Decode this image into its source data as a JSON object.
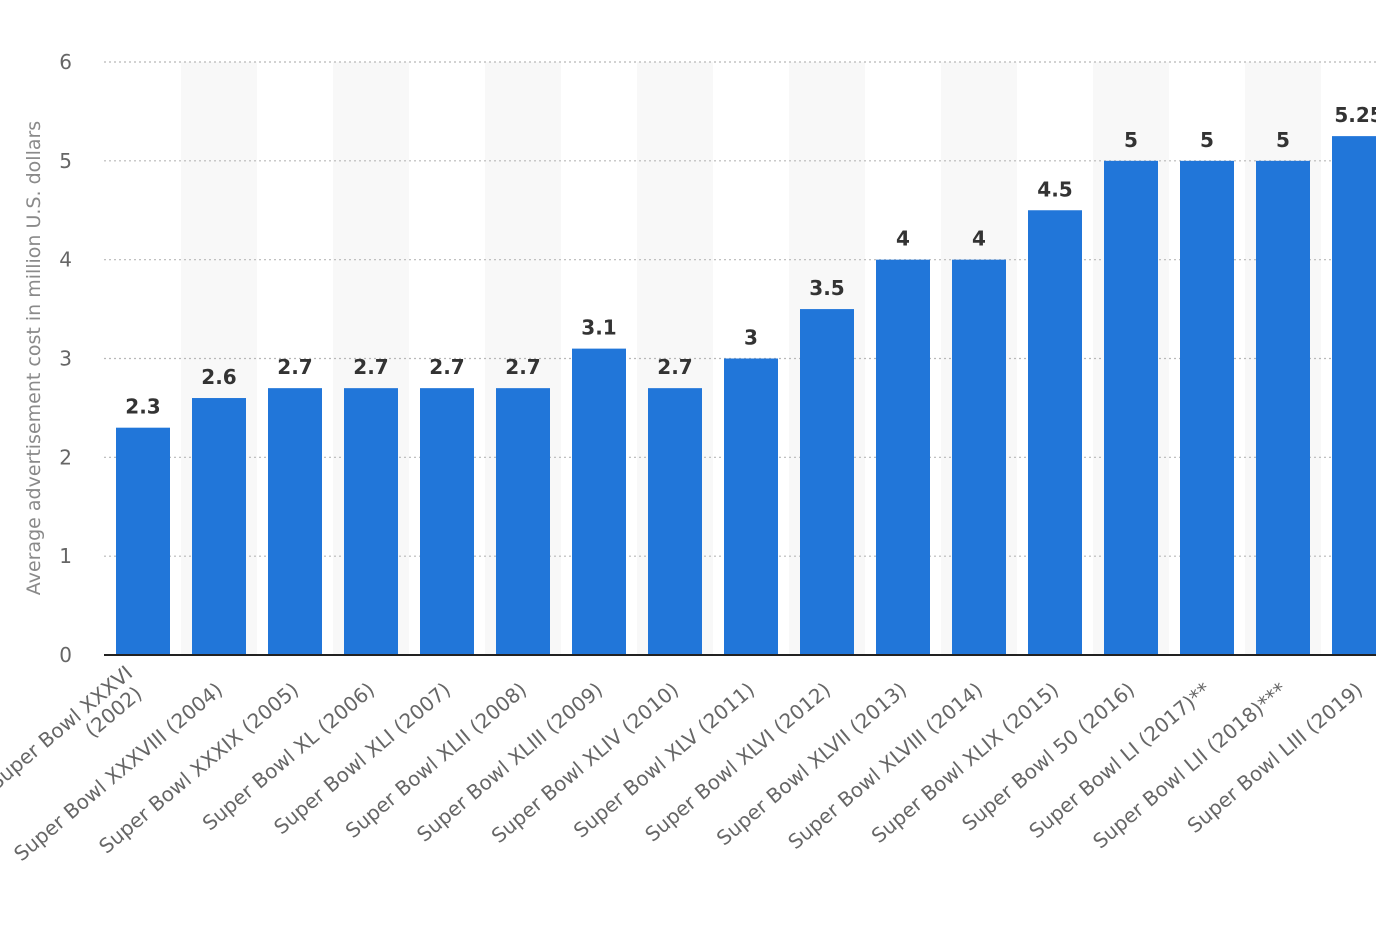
{
  "chart_data": {
    "type": "bar",
    "ylabel": "Average advertisement cost in million U.S. dollars",
    "ylim": [
      0,
      6
    ],
    "yticks": [
      "0",
      "1",
      "2",
      "3",
      "4",
      "5",
      "6"
    ],
    "grid": true,
    "legend": "none",
    "bar_color": "#2176d9",
    "categories": [
      [
        "Super Bowl XXXVI",
        "(2002)"
      ],
      [
        "Super Bowl XXXVIII (2004)"
      ],
      [
        "Super Bowl XXXIX (2005)"
      ],
      [
        "Super Bowl XL (2006)"
      ],
      [
        "Super Bowl XLI (2007)"
      ],
      [
        "Super Bowl XLII (2008)"
      ],
      [
        "Super Bowl XLIII (2009)"
      ],
      [
        "Super Bowl XLIV (2010)"
      ],
      [
        "Super Bowl XLV (2011)"
      ],
      [
        "Super Bowl XLVI (2012)"
      ],
      [
        "Super Bowl XLVII (2013)"
      ],
      [
        "Super Bowl XLVIII (2014)"
      ],
      [
        "Super Bowl XLIX (2015)"
      ],
      [
        "Super Bowl 50 (2016)"
      ],
      [
        "Super Bowl LI (2017)**"
      ],
      [
        "Super Bowl LII (2018)***"
      ],
      [
        "Super Bowl LIII (2019)"
      ]
    ],
    "values": [
      2.3,
      2.6,
      2.7,
      2.7,
      2.7,
      2.7,
      3.1,
      2.7,
      3,
      3.5,
      4,
      4,
      4.5,
      5,
      5,
      5,
      5.25
    ],
    "data_labels": [
      "2.3",
      "2.6",
      "2.7",
      "2.7",
      "2.7",
      "2.7",
      "3.1",
      "2.7",
      "3",
      "3.5",
      "4",
      "4",
      "4.5",
      "5",
      "5",
      "5",
      "5.25"
    ]
  }
}
